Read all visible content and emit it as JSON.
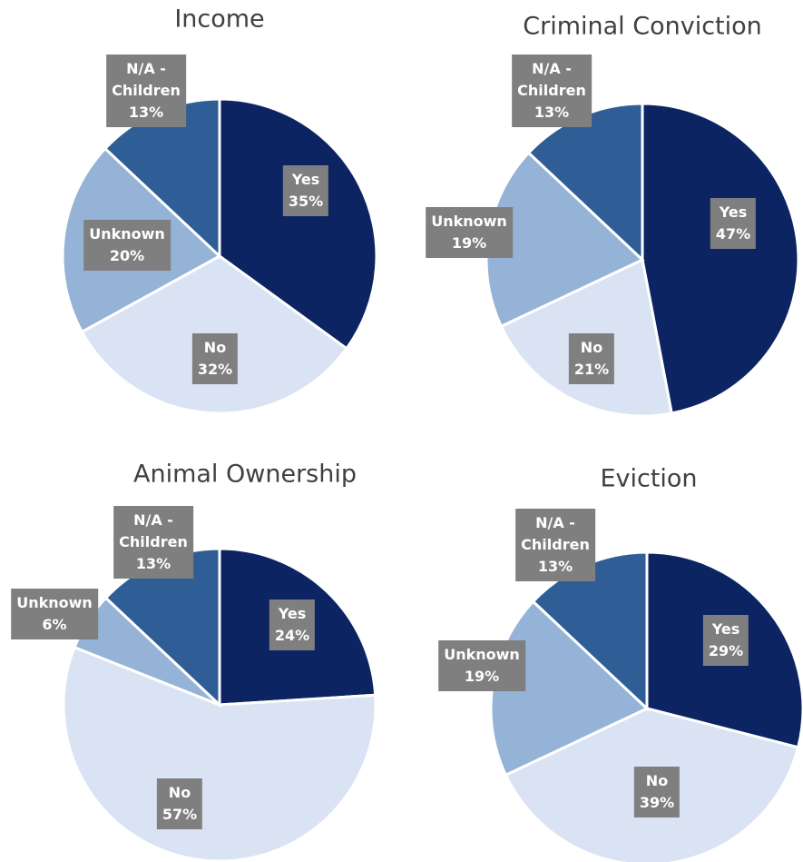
{
  "chart_data": [
    {
      "type": "pie",
      "title": "Income",
      "categories": [
        "Yes",
        "No",
        "Unknown",
        "N/A - Children"
      ],
      "values": [
        35,
        32,
        20,
        13
      ],
      "value_labels": [
        "35%",
        "32%",
        "20%",
        "13%"
      ],
      "colors": [
        "#0c2461",
        "#dae3f3",
        "#95b3d7",
        "#2f5d96"
      ]
    },
    {
      "type": "pie",
      "title": "Criminal Conviction",
      "categories": [
        "Yes",
        "No",
        "Unknown",
        "N/A - Children"
      ],
      "values": [
        47,
        21,
        19,
        13
      ],
      "value_labels": [
        "47%",
        "21%",
        "19%",
        "13%"
      ],
      "colors": [
        "#0c2461",
        "#dae3f3",
        "#95b3d7",
        "#2f5d96"
      ]
    },
    {
      "type": "pie",
      "title": "Animal Ownership",
      "categories": [
        "Yes",
        "No",
        "Unknown",
        "N/A - Children"
      ],
      "values": [
        24,
        57,
        6,
        13
      ],
      "value_labels": [
        "24%",
        "57%",
        "6%",
        "13%"
      ],
      "colors": [
        "#0c2461",
        "#dae3f3",
        "#95b3d7",
        "#2f5d96"
      ]
    },
    {
      "type": "pie",
      "title": "Eviction",
      "categories": [
        "Yes",
        "No",
        "Unknown",
        "N/A - Children"
      ],
      "values": [
        29,
        39,
        19,
        13
      ],
      "value_labels": [
        "29%",
        "39%",
        "19%",
        "13%"
      ],
      "colors": [
        "#0c2461",
        "#dae3f3",
        "#95b3d7",
        "#2f5d96"
      ]
    }
  ]
}
